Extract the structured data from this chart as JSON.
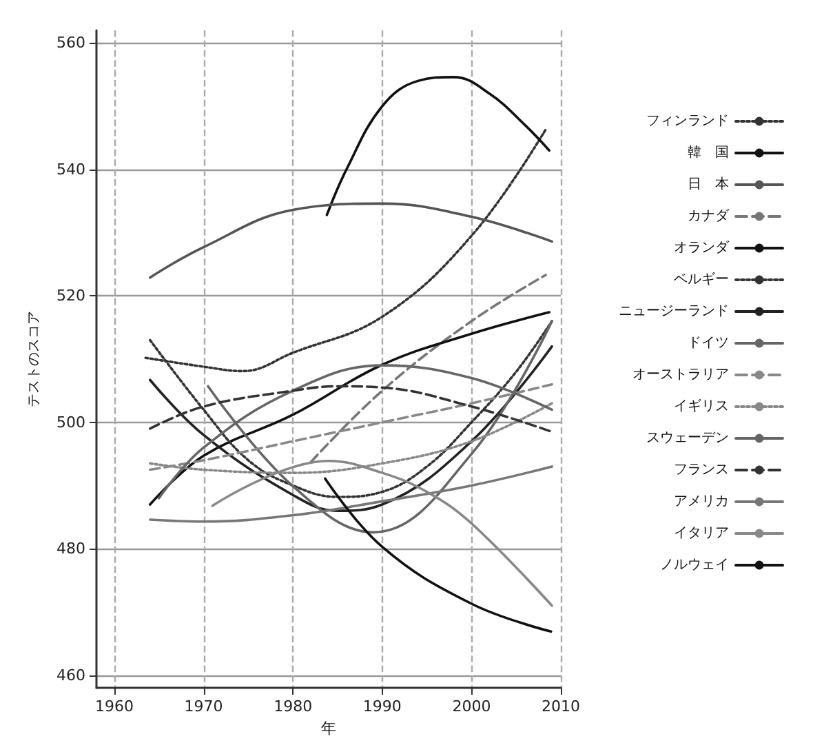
{
  "chart_data": {
    "type": "line",
    "xlabel": "年",
    "ylabel": "テストのスコア",
    "xlim": [
      1958,
      2010
    ],
    "xticks": [
      1960,
      1970,
      1980,
      1990,
      2000,
      2010
    ],
    "ylim": [
      458,
      562
    ],
    "yticks": [
      460,
      480,
      500,
      520,
      540,
      560
    ],
    "grid": true,
    "legend": "right",
    "marker": "none",
    "series": [
      {
        "name": "フィンランド",
        "color": "#333333",
        "line_style": "dotted",
        "x": [
          1963.5,
          1970,
          1974.4,
          1980,
          1990,
          2000,
          2008.3
        ],
        "values": [
          510.2,
          508.8,
          508.1,
          511,
          516.7,
          529.5,
          546.3
        ]
      },
      {
        "name": "韓　国",
        "color": "#111111",
        "line_style": "solid",
        "x": [
          1983.8,
          1986,
          1990,
          1994,
          1998,
          2002,
          2006,
          2008.7
        ],
        "values": [
          532.8,
          540,
          550,
          554,
          554.6,
          552,
          547,
          543
        ]
      },
      {
        "name": "日　本",
        "color": "#555555",
        "line_style": "solid",
        "x": [
          1964,
          1970,
          1980,
          1990,
          2000,
          2009
        ],
        "values": [
          522.9,
          527.7,
          533.6,
          534.6,
          532.5,
          528.6
        ]
      },
      {
        "name": "カナダ",
        "color": "#777777",
        "line_style": "dashed",
        "x": [
          1982,
          1990,
          2000,
          2008.3
        ],
        "values": [
          493.7,
          505,
          516,
          523.3
        ]
      },
      {
        "name": "オランダ",
        "color": "#111111",
        "line_style": "solid",
        "x": [
          1964,
          1970,
          1980,
          1990,
          2000,
          2008.7
        ],
        "values": [
          487,
          494.7,
          501.2,
          509.1,
          514,
          517.4
        ]
      },
      {
        "name": "ベルギー",
        "color": "#333333",
        "line_style": "dotted",
        "x": [
          1964,
          1970,
          1975,
          1980,
          1985,
          1990,
          1995,
          2000,
          2005,
          2009
        ],
        "values": [
          513,
          502,
          494,
          490,
          488.2,
          489,
          493,
          500,
          508,
          516
        ]
      },
      {
        "name": "ニュージーランド",
        "color": "#222222",
        "line_style": "solid",
        "x": [
          1964,
          1970,
          1980,
          1985,
          1990,
          2000,
          2009
        ],
        "values": [
          506.7,
          498,
          488.5,
          486,
          487,
          497,
          512
        ]
      },
      {
        "name": "ドイツ",
        "color": "#666666",
        "line_style": "solid",
        "x": [
          1970.5,
          1980,
          1989,
          2000,
          2009
        ],
        "values": [
          505.7,
          489.9,
          482.6,
          495,
          516
        ]
      },
      {
        "name": "オーストラリア",
        "color": "#888888",
        "line_style": "dashed",
        "x": [
          1964,
          1970,
          1980,
          1990,
          2000,
          2009
        ],
        "values": [
          492.5,
          494,
          497,
          500,
          503,
          506
        ]
      },
      {
        "name": "イギリス",
        "color": "#888888",
        "line_style": "dotted",
        "x": [
          1964,
          1970,
          1980,
          1990,
          2000,
          2009
        ],
        "values": [
          493.5,
          492.5,
          492,
          493.5,
          497,
          503
        ]
      },
      {
        "name": "スウェーデン",
        "color": "#666666",
        "line_style": "solid",
        "x": [
          1965,
          1970,
          1980,
          1990,
          2000,
          2009
        ],
        "values": [
          488,
          496,
          505,
          509,
          507,
          502
        ]
      },
      {
        "name": "フランス",
        "color": "#333333",
        "line_style": "dashed",
        "x": [
          1964,
          1970,
          1980,
          1985,
          1990,
          2000,
          2009
        ],
        "values": [
          499,
          502.5,
          505,
          505.7,
          505.5,
          502.5,
          498.5
        ]
      },
      {
        "name": "アメリカ",
        "color": "#777777",
        "line_style": "solid",
        "x": [
          1964,
          1970,
          1980,
          1990,
          2000,
          2009
        ],
        "values": [
          484.6,
          484.3,
          485.3,
          487.5,
          490,
          493
        ]
      },
      {
        "name": "イタリア",
        "color": "#888888",
        "line_style": "solid",
        "x": [
          1971,
          1984,
          1990,
          1995,
          2000,
          2009
        ],
        "values": [
          486.8,
          493.9,
          492,
          489,
          484,
          471
        ]
      },
      {
        "name": "ノルウェイ",
        "color": "#111111",
        "line_style": "solid",
        "x": [
          1983.6,
          1990,
          2000,
          2008.9
        ],
        "values": [
          491.1,
          480.3,
          471.3,
          466.9
        ]
      }
    ]
  }
}
